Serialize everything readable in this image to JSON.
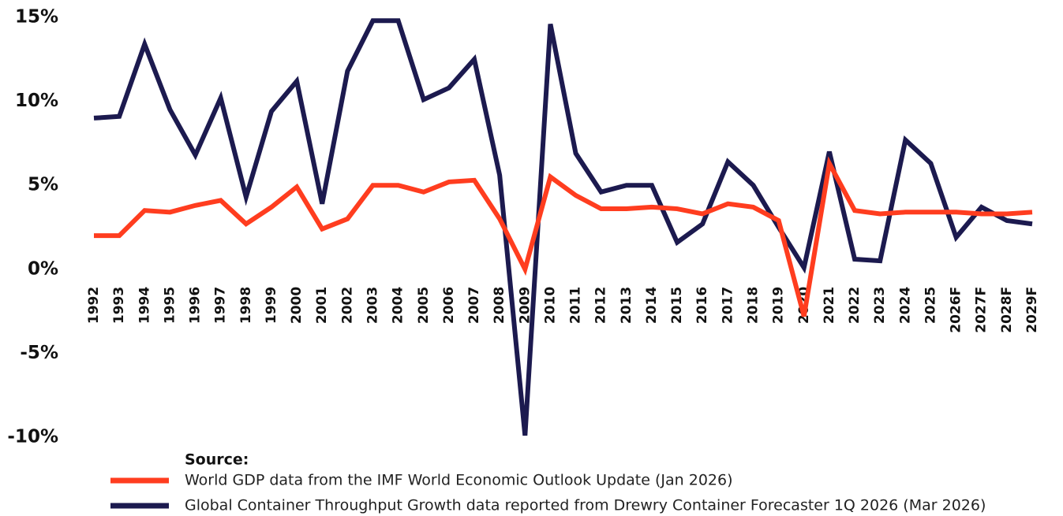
{
  "chart_data": {
    "type": "line",
    "categories": [
      "1992",
      "1993",
      "1994",
      "1995",
      "1996",
      "1997",
      "1998",
      "1999",
      "2000",
      "2001",
      "2002",
      "2003",
      "2004",
      "2005",
      "2006",
      "2007",
      "2008",
      "2009",
      "2010",
      "2011",
      "2012",
      "2013",
      "2014",
      "2015",
      "2016",
      "2017",
      "2018",
      "2019",
      "2020",
      "2021",
      "2022",
      "2023",
      "2024",
      "2025",
      "2026F",
      "2027F",
      "2028F",
      "2029F"
    ],
    "series": [
      {
        "name": "World GDP data from the IMF World Economic Outlook Update (Jan 2026)",
        "color": "#ff3d1f",
        "values": [
          2.0,
          2.0,
          3.5,
          3.4,
          3.8,
          4.1,
          2.7,
          3.7,
          4.9,
          2.4,
          3.0,
          5.0,
          5.0,
          4.6,
          5.2,
          5.3,
          3.0,
          0.0,
          5.5,
          4.4,
          3.6,
          3.6,
          3.7,
          3.6,
          3.3,
          3.9,
          3.7,
          2.9,
          -2.8,
          6.3,
          3.5,
          3.3,
          3.4,
          3.4,
          3.4,
          3.3,
          3.3,
          3.4
        ]
      },
      {
        "name": "Global Container Throughput Growth data reported from Drewry Container Forecaster 1Q 2026 (Mar 2026)",
        "color": "#1c1a4f",
        "values": [
          9.0,
          9.1,
          13.4,
          9.5,
          6.8,
          10.2,
          4.3,
          9.4,
          11.2,
          3.9,
          11.8,
          14.8,
          14.8,
          10.1,
          10.8,
          12.5,
          5.6,
          -9.9,
          14.6,
          6.9,
          4.6,
          5.0,
          5.0,
          1.6,
          2.7,
          6.4,
          5.0,
          2.5,
          0.1,
          7.0,
          0.6,
          0.5,
          7.7,
          6.3,
          1.9,
          3.7,
          2.9,
          2.7
        ]
      }
    ],
    "legend_title": "Source:",
    "ylim": [
      -10,
      15
    ],
    "yticks": [
      {
        "value": -10,
        "label": "-10%"
      },
      {
        "value": -5,
        "label": "-5%"
      },
      {
        "value": 0,
        "label": "0%"
      },
      {
        "value": 5,
        "label": "5%"
      },
      {
        "value": 10,
        "label": "10%"
      },
      {
        "value": 15,
        "label": "15%"
      }
    ]
  }
}
